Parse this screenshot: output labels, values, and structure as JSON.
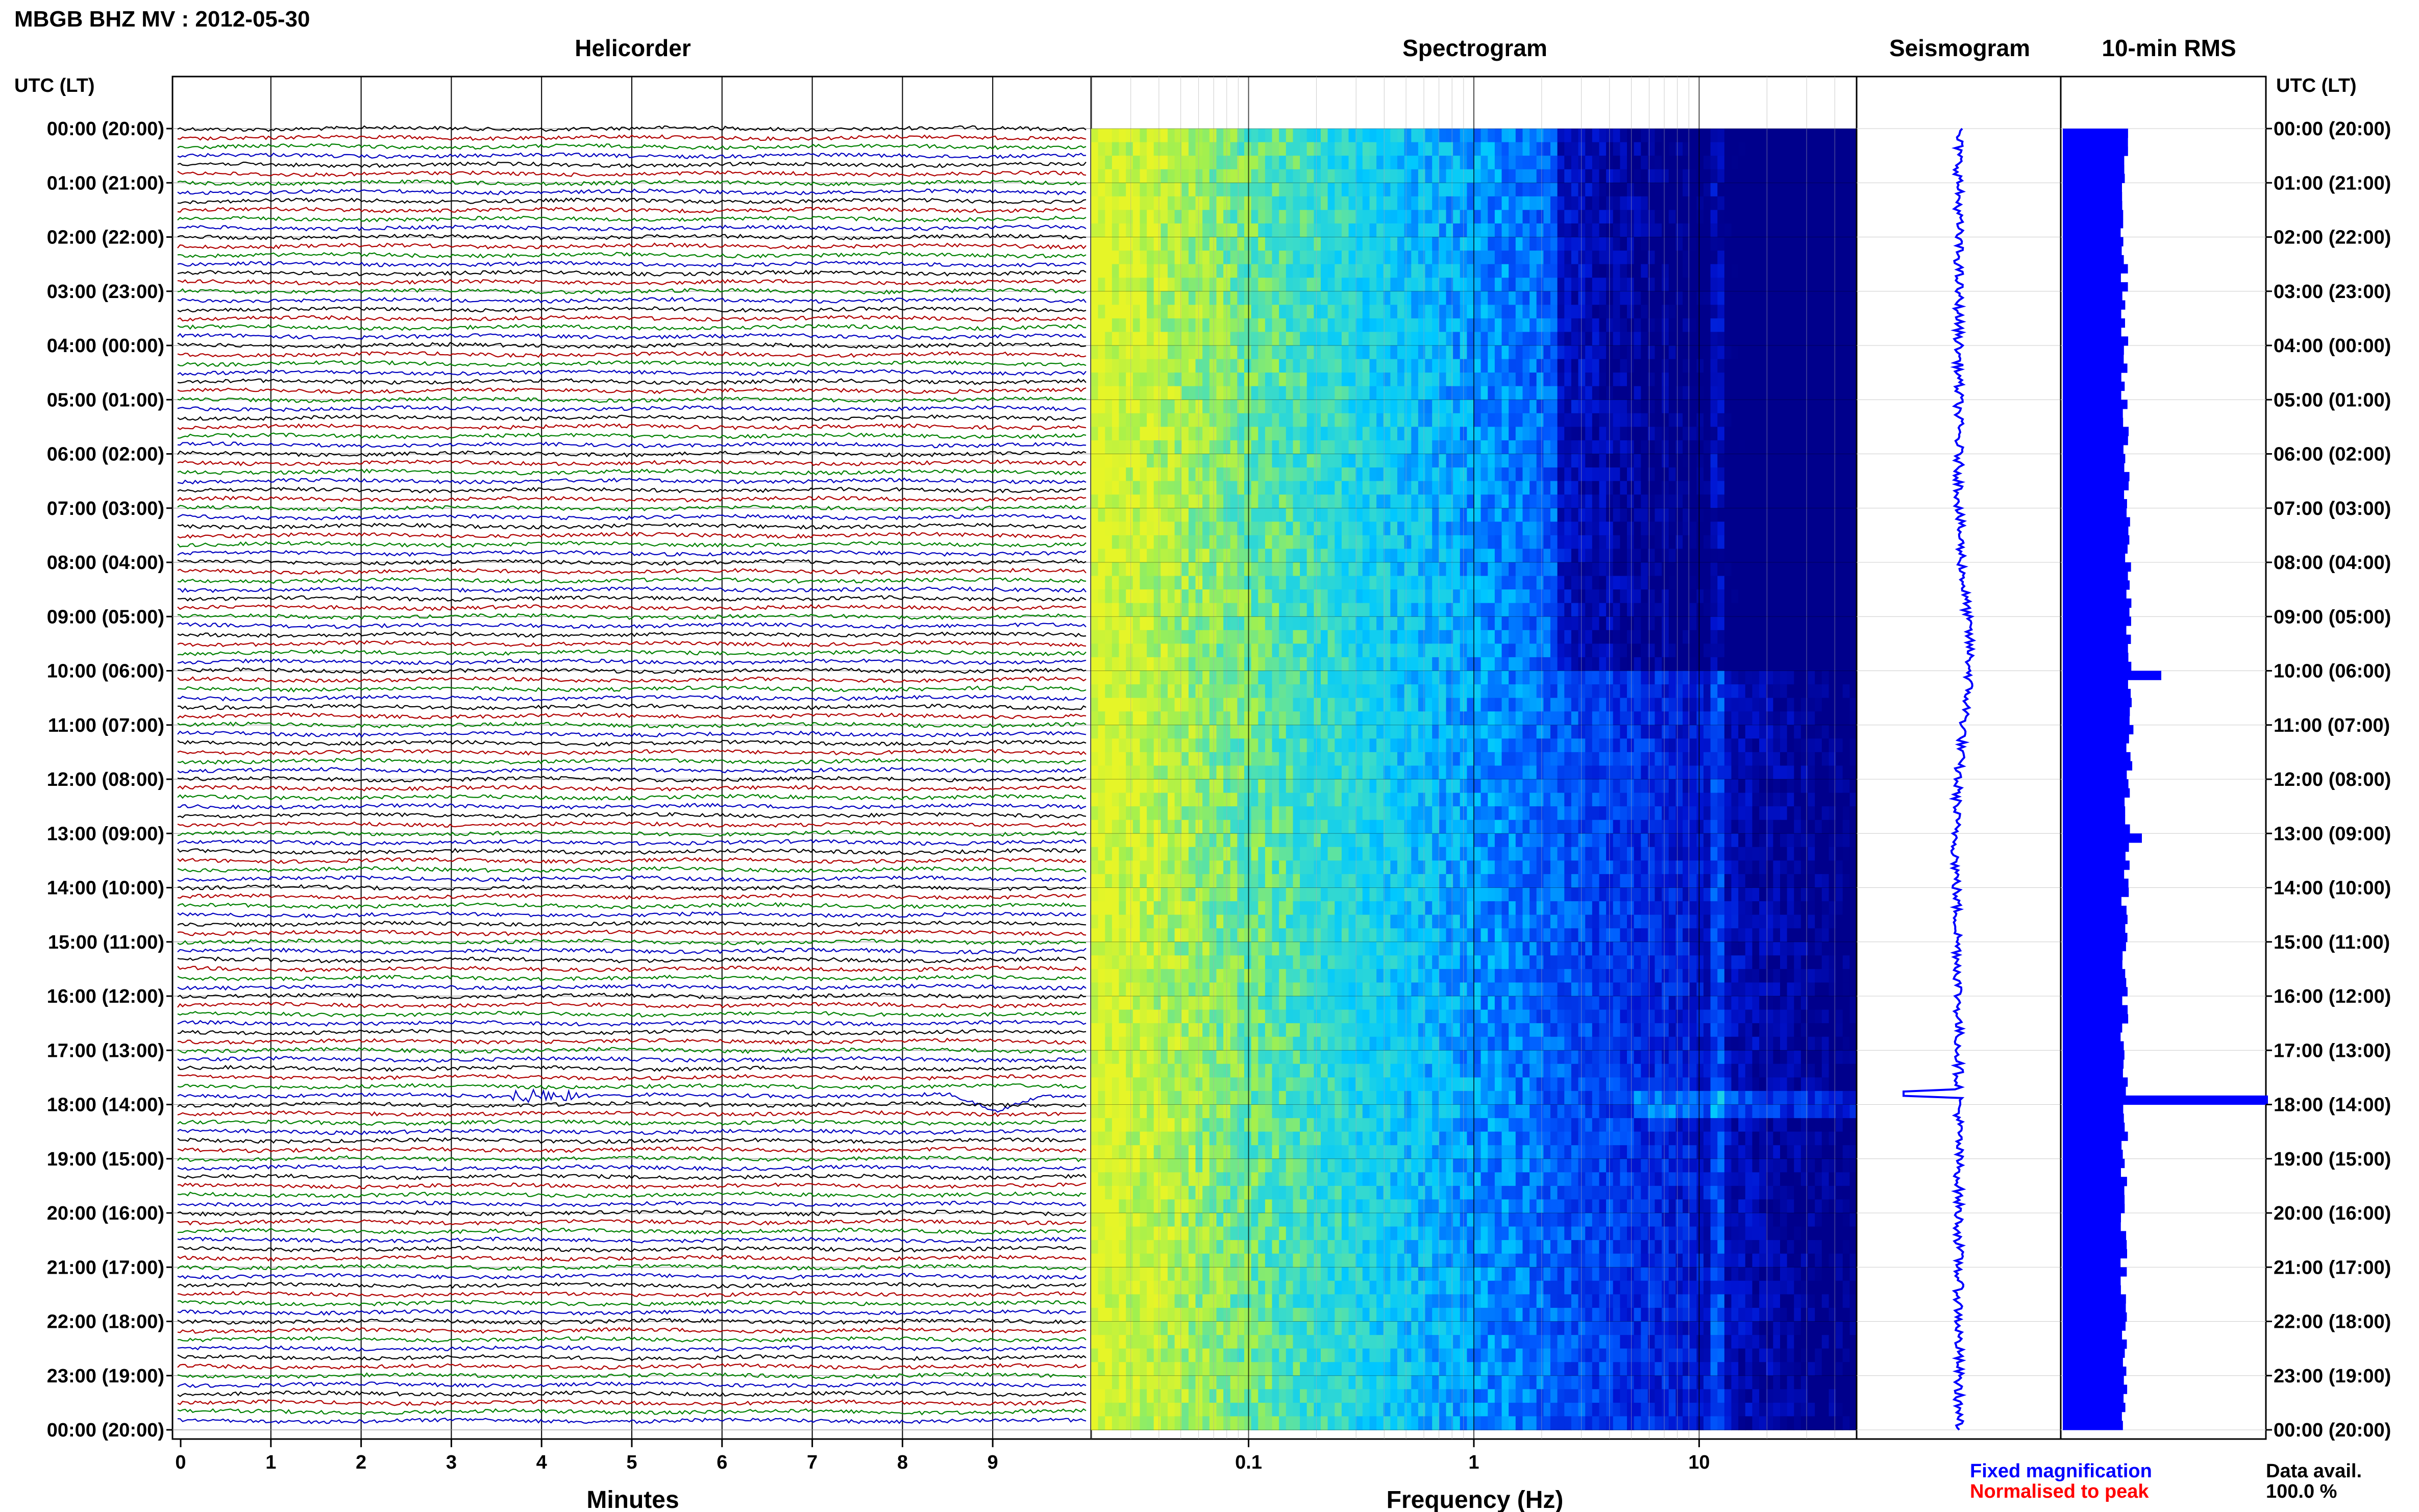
{
  "header": {
    "title": "MBGB BHZ MV : 2012-05-30",
    "utc_label_left": "UTC (LT)",
    "utc_label_right": "UTC (LT)"
  },
  "sections": {
    "helicorder": "Helicorder",
    "spectrogram": "Spectrogram",
    "seismogram": "Seismogram",
    "rms": "10-min RMS"
  },
  "time_labels": [
    "00:00 (20:00)",
    "01:00 (21:00)",
    "02:00 (22:00)",
    "03:00 (23:00)",
    "04:00 (00:00)",
    "05:00 (01:00)",
    "06:00 (02:00)",
    "07:00 (03:00)",
    "08:00 (04:00)",
    "09:00 (05:00)",
    "10:00 (06:00)",
    "11:00 (07:00)",
    "12:00 (08:00)",
    "13:00 (09:00)",
    "14:00 (10:00)",
    "15:00 (11:00)",
    "16:00 (12:00)",
    "17:00 (13:00)",
    "18:00 (14:00)",
    "19:00 (15:00)",
    "20:00 (16:00)",
    "21:00 (17:00)",
    "22:00 (18:00)",
    "23:00 (19:00)",
    "00:00 (20:00)"
  ],
  "chart_data": [
    {
      "type": "line",
      "name": "helicorder",
      "title": "Helicorder",
      "xlabel": "Minutes",
      "x_ticks": [
        "0",
        "1",
        "2",
        "3",
        "4",
        "5",
        "6",
        "7",
        "8",
        "9"
      ],
      "xlim": [
        0,
        10
      ],
      "rows": 144,
      "row_minutes": 10,
      "trace_colors": [
        "#000000",
        "#b00000",
        "#008000",
        "#0000c0"
      ],
      "events": [
        {
          "row_hour": 17.83,
          "minute": 4.0,
          "kind": "burst"
        },
        {
          "row_hour": 17.83,
          "minute": 9.0,
          "kind": "dip"
        }
      ]
    },
    {
      "type": "heatmap",
      "name": "spectrogram",
      "title": "Spectrogram",
      "xlabel": "Frequency (Hz)",
      "x_scale": "log",
      "xlim": [
        0.02,
        50
      ],
      "x_ticks": [
        "0.1",
        "1",
        "10"
      ]
    },
    {
      "type": "line",
      "name": "seismogram",
      "title": "Seismogram",
      "color": "#0000ff",
      "events": [
        {
          "hour": 17.8,
          "kind": "spike"
        }
      ]
    },
    {
      "type": "bar",
      "name": "rms",
      "title": "10-min RMS",
      "orientation": "horizontal",
      "color": "#0000ff",
      "bins": 144,
      "peaks": [
        {
          "hour": 10.0,
          "level": 0.45
        },
        {
          "hour": 17.8,
          "level": 1.0
        },
        {
          "hour": 13.0,
          "level": 0.35
        }
      ]
    }
  ],
  "legend": {
    "fixed": "Fixed magnification",
    "normalised": "Normalised to peak",
    "fixed_color": "#0000ff",
    "normalised_color": "#ff0000"
  },
  "availability": {
    "label": "Data avail.",
    "value": "100.0 %"
  }
}
